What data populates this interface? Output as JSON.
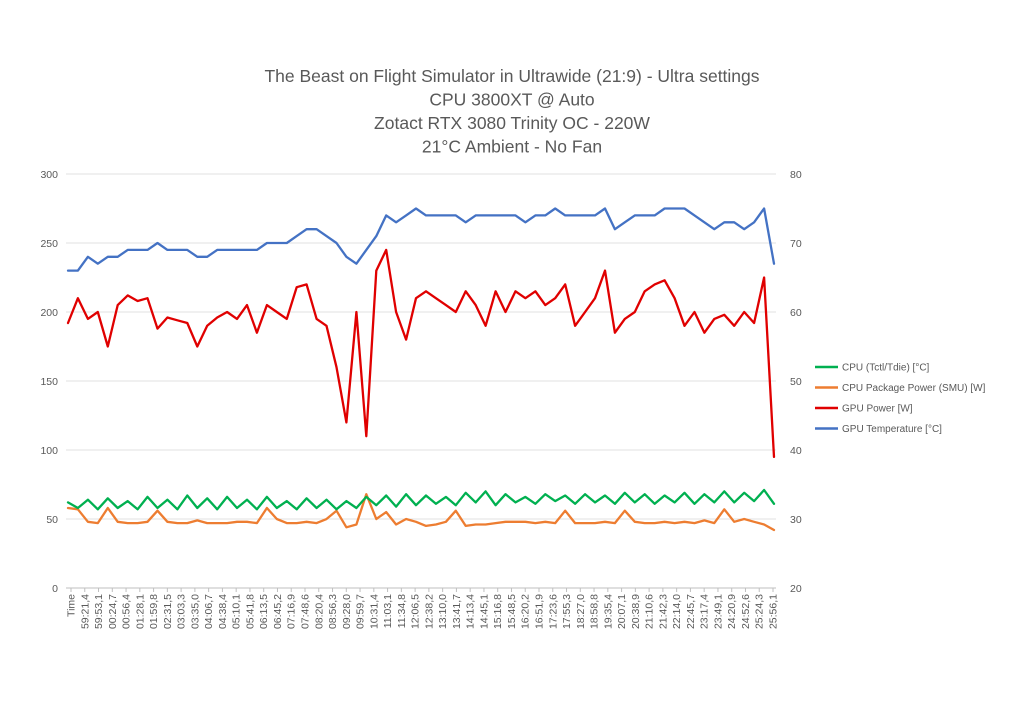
{
  "chart_data": {
    "type": "line",
    "title_lines": [
      "The Beast on Flight Simulator in Ultrawide (21:9) - Ultra settings",
      "CPU 3800XT @ Auto",
      "Zotact RTX 3080 Trinity OC - 220W",
      "21°C Ambient - No Fan"
    ],
    "y_left": {
      "min": 0,
      "max": 300,
      "ticks": [
        "0",
        "50",
        "100",
        "150",
        "200",
        "250",
        "300"
      ]
    },
    "y_right": {
      "min": 20,
      "max": 80,
      "ticks": [
        "20",
        "30",
        "40",
        "50",
        "60",
        "70",
        "80"
      ]
    },
    "x_tick_labels": [
      "Time",
      "59:21,4",
      "59:53,1",
      "00:24,7",
      "00:56,4",
      "01:28,1",
      "01:59,8",
      "02:31,5",
      "03:03,3",
      "03:35,0",
      "04:06,7",
      "04:38,4",
      "05:10,1",
      "05:41,8",
      "06:13,5",
      "06:45,2",
      "07:16,9",
      "07:48,6",
      "08:20,4",
      "08:56,3",
      "09:28,0",
      "09:59,7",
      "10:31,4",
      "11:03,1",
      "11:34,8",
      "12:06,5",
      "12:38,2",
      "13:10,0",
      "13:41,7",
      "14:13,4",
      "14:45,1",
      "15:16,8",
      "15:48,5",
      "16:20,2",
      "16:51,9",
      "17:23,6",
      "17:55,3",
      "18:27,0",
      "18:58,8",
      "19:35,4",
      "20:07,1",
      "20:38,9",
      "21:10,6",
      "21:42,3",
      "22:14,0",
      "22:45,7",
      "23:17,4",
      "23:49,1",
      "24:20,9",
      "24:52,6",
      "25:24,3",
      "25:56,1"
    ],
    "legend_position": "right",
    "grid": true,
    "series": [
      {
        "name": "CPU (Tctl/Tdie) [°C]",
        "axis": "left",
        "color": "#00b050",
        "values": [
          62,
          58,
          64,
          57,
          65,
          58,
          63,
          57,
          66,
          58,
          64,
          57,
          67,
          58,
          65,
          57,
          66,
          58,
          64,
          57,
          66,
          58,
          63,
          57,
          65,
          58,
          64,
          57,
          63,
          58,
          66,
          60,
          67,
          59,
          68,
          60,
          67,
          61,
          66,
          60,
          69,
          62,
          70,
          60,
          68,
          62,
          66,
          61,
          68,
          63,
          67,
          61,
          68,
          62,
          67,
          61,
          69,
          62,
          68,
          61,
          67,
          62,
          69,
          61,
          68,
          62,
          70,
          62,
          69,
          63,
          71,
          61
        ]
      },
      {
        "name": "CPU Package Power (SMU) [W]",
        "axis": "left",
        "color": "#ed7d31",
        "values": [
          58,
          57,
          48,
          47,
          58,
          48,
          47,
          47,
          48,
          56,
          48,
          47,
          47,
          49,
          47,
          47,
          47,
          48,
          48,
          47,
          58,
          50,
          47,
          47,
          48,
          47,
          50,
          56,
          44,
          46,
          68,
          50,
          55,
          46,
          50,
          48,
          45,
          46,
          48,
          56,
          45,
          46,
          46,
          47,
          48,
          48,
          48,
          47,
          48,
          47,
          56,
          47,
          47,
          47,
          48,
          47,
          56,
          48,
          47,
          47,
          48,
          47,
          48,
          47,
          49,
          47,
          57,
          48,
          50,
          48,
          46,
          42
        ]
      },
      {
        "name": "GPU Power [W]",
        "axis": "left",
        "color": "#e00000",
        "values": [
          192,
          210,
          195,
          200,
          175,
          205,
          212,
          208,
          210,
          188,
          196,
          194,
          192,
          175,
          190,
          196,
          200,
          195,
          205,
          185,
          205,
          200,
          195,
          218,
          220,
          195,
          190,
          160,
          120,
          200,
          110,
          230,
          245,
          200,
          180,
          210,
          215,
          210,
          205,
          200,
          215,
          205,
          190,
          215,
          200,
          215,
          210,
          215,
          205,
          210,
          220,
          190,
          200,
          210,
          230,
          185,
          195,
          200,
          215,
          220,
          223,
          210,
          190,
          200,
          185,
          195,
          198,
          190,
          200,
          192,
          225,
          95
        ]
      },
      {
        "name": "GPU Temperature [°C]",
        "axis": "right",
        "color": "#4472c4",
        "values": [
          66,
          66,
          68,
          67,
          68,
          68,
          69,
          69,
          69,
          70,
          69,
          69,
          69,
          68,
          68,
          69,
          69,
          69,
          69,
          69,
          70,
          70,
          70,
          71,
          72,
          72,
          71,
          70,
          68,
          67,
          69,
          71,
          74,
          73,
          74,
          75,
          74,
          74,
          74,
          74,
          73,
          74,
          74,
          74,
          74,
          74,
          73,
          74,
          74,
          75,
          74,
          74,
          74,
          74,
          75,
          72,
          73,
          74,
          74,
          74,
          75,
          75,
          75,
          74,
          73,
          72,
          73,
          73,
          72,
          73,
          75,
          67
        ]
      }
    ]
  }
}
